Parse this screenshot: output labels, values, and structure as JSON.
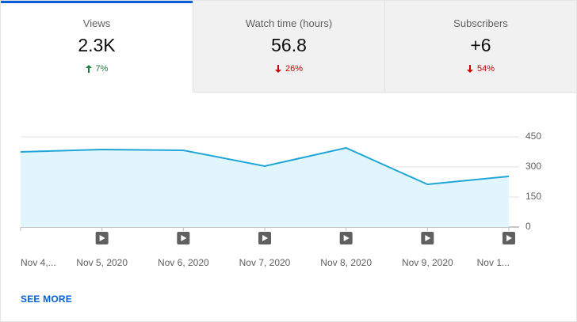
{
  "tabs": [
    {
      "label": "Views",
      "value": "2.3K",
      "change": "7%"
    },
    {
      "label": "Watch time (hours)",
      "value": "56.8",
      "change": "26%"
    },
    {
      "label": "Subscribers",
      "value": "+6",
      "change": "54%"
    }
  ],
  "chart_data": {
    "type": "area",
    "categories": [
      "Nov 4,...",
      "Nov 5, 2020",
      "Nov 6, 2020",
      "Nov 7, 2020",
      "Nov 8, 2020",
      "Nov 9, 2020",
      "Nov 1..."
    ],
    "values": [
      375,
      387,
      383,
      304,
      395,
      213,
      253
    ],
    "color": "#1fa6d6",
    "fill": "#e1f5fc",
    "ylim": [
      0,
      450
    ],
    "yticks": [
      0,
      150,
      300,
      450
    ],
    "grid": true
  },
  "see_more": "SEE MORE"
}
